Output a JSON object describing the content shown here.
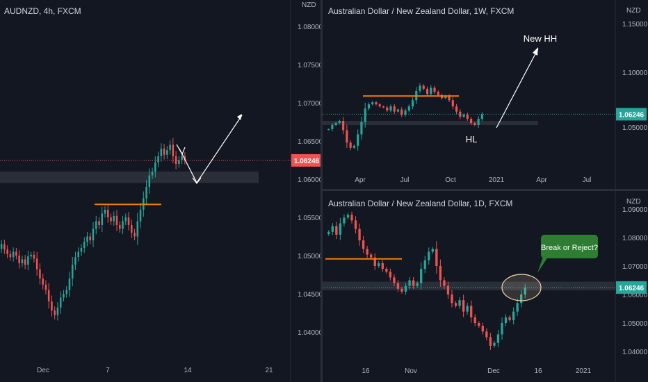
{
  "colors": {
    "background": "#131722",
    "up": "#26a69a",
    "down": "#ef5350",
    "price_line_red": "#ef5350",
    "price_line_green": "#26a69a",
    "orange_level": "#f57c00",
    "zone": "#2a2e39",
    "annotation_box": "#2e7d32",
    "ellipse": "#f5d8a8",
    "arrow": "#ffffff",
    "axis_text": "#b2b5be"
  },
  "chart_data": [
    {
      "type": "candlestick",
      "panel": "left",
      "title": "AUDNZD, 4h, FXCM",
      "currency": "NZD",
      "y_ticks": [
        "1.08000",
        "1.07500",
        "1.07000",
        "1.06500",
        "1.06000",
        "1.05500",
        "1.05000",
        "1.04500",
        "1.04000"
      ],
      "ylim": [
        1.0355,
        1.0835
      ],
      "x_labels": [
        "Dec",
        "7",
        "14",
        "21"
      ],
      "last_price": "1.06246",
      "last_price_value": 1.06246,
      "last_price_color": "red",
      "closes": [
        1.0515,
        1.0508,
        1.0502,
        1.0498,
        1.0505,
        1.05,
        1.049,
        1.0495,
        1.0488,
        1.0499,
        1.0501,
        1.0496,
        1.0482,
        1.047,
        1.0462,
        1.0455,
        1.044,
        1.0428,
        1.0422,
        1.0432,
        1.0445,
        1.045,
        1.0455,
        1.047,
        1.0488,
        1.0498,
        1.0505,
        1.051,
        1.0518,
        1.0525,
        1.052,
        1.0535,
        1.0545,
        1.054,
        1.0555,
        1.056,
        1.055,
        1.0545,
        1.0552,
        1.054,
        1.0535,
        1.0545,
        1.055,
        1.054,
        1.053,
        1.0525,
        1.0545,
        1.056,
        1.0575,
        1.059,
        1.0605,
        1.061,
        1.0622,
        1.063,
        1.064,
        1.0632,
        1.0638,
        1.0645,
        1.063,
        1.062,
        1.0625,
        1.063,
        1.06246
      ],
      "orange_level": {
        "value": 1.0567
      },
      "zone": {
        "from": 1.0595,
        "to": 1.061
      },
      "arrow_points": [
        [
          1.065,
          1.064
        ],
        [
          1.063,
          1.0595
        ],
        [
          1.0595,
          1.068
        ]
      ]
    },
    {
      "type": "candlestick",
      "panel": "top-right",
      "title": "Australian Dollar / New Zealand Dollar, 1W, FXCM",
      "currency": "NZD",
      "y_ticks": [
        "1.15000",
        "1.10000",
        "1.05000"
      ],
      "ylim": [
        1.0135,
        1.1635
      ],
      "x_labels": [
        "Apr",
        "Jul",
        "Oct",
        "2021",
        "Apr",
        "Jul"
      ],
      "last_price": "1.06246",
      "last_price_value": 1.06246,
      "last_price_color": "green",
      "closes": [
        1.048,
        1.052,
        1.054,
        1.056,
        1.047,
        1.035,
        1.03,
        1.032,
        1.043,
        1.055,
        1.068,
        1.072,
        1.074,
        1.072,
        1.07,
        1.069,
        1.066,
        1.07,
        1.065,
        1.067,
        1.062,
        1.066,
        1.07,
        1.076,
        1.085,
        1.09,
        1.087,
        1.082,
        1.088,
        1.084,
        1.081,
        1.078,
        1.08,
        1.076,
        1.07,
        1.065,
        1.06,
        1.062,
        1.058,
        1.054,
        1.052,
        1.058,
        1.06246
      ],
      "orange_level": {
        "value": 1.08
      },
      "zone": {
        "from": 1.053,
        "to": 1.056
      },
      "annotations": [
        "New HH",
        "HL"
      ]
    },
    {
      "type": "candlestick",
      "panel": "bottom-right",
      "title": "Australian Dollar / New Zealand Dollar, 1D, FXCM",
      "currency": "NZD",
      "y_ticks": [
        "1.09000",
        "1.08000",
        "1.07000",
        "1.06000",
        "1.05000",
        "1.04000"
      ],
      "ylim": [
        1.0355,
        1.0935
      ],
      "x_labels": [
        "16",
        "Nov",
        "Dec",
        "16",
        "2021"
      ],
      "last_price": "1.06246",
      "last_price_value": 1.06246,
      "last_price_color": "green",
      "closes": [
        1.082,
        1.084,
        1.081,
        1.085,
        1.087,
        1.088,
        1.086,
        1.083,
        1.079,
        1.076,
        1.074,
        1.073,
        1.07,
        1.071,
        1.069,
        1.068,
        1.066,
        1.064,
        1.062,
        1.061,
        1.063,
        1.065,
        1.063,
        1.064,
        1.069,
        1.072,
        1.075,
        1.076,
        1.07,
        1.065,
        1.063,
        1.06,
        1.057,
        1.056,
        1.058,
        1.054,
        1.056,
        1.052,
        1.05,
        1.049,
        1.047,
        1.045,
        1.042,
        1.043,
        1.046,
        1.05,
        1.052,
        1.051,
        1.054,
        1.057,
        1.06,
        1.06246
      ],
      "orange_level": {
        "value": 1.0725
      },
      "zone": {
        "from": 1.0615,
        "to": 1.0645
      },
      "annotations": [
        "Break or Reject?"
      ]
    }
  ]
}
